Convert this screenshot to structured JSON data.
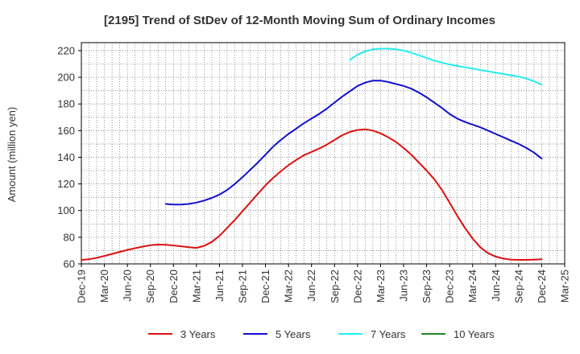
{
  "chart_data": {
    "type": "line",
    "title": "[2195]  Trend of StDev of 12-Month Moving Sum of Ordinary Incomes",
    "ylabel": "Amount (million yen)",
    "xlabel": "",
    "ylim": [
      60,
      226
    ],
    "yticks": [
      60,
      80,
      100,
      120,
      140,
      160,
      180,
      200,
      220
    ],
    "xticks": [
      "Dec-19",
      "Mar-20",
      "Jun-20",
      "Sep-20",
      "Dec-20",
      "Mar-21",
      "Jun-21",
      "Sep-21",
      "Dec-21",
      "Mar-22",
      "Jun-22",
      "Sep-22",
      "Dec-22",
      "Mar-23",
      "Jun-23",
      "Sep-23",
      "Dec-23",
      "Mar-24",
      "Jun-24",
      "Sep-24",
      "Dec-24",
      "Mar-25"
    ],
    "grid": true,
    "legend_position": "bottom",
    "series": [
      {
        "name": "3 Years",
        "color": "#dd1111",
        "x": [
          "Dec-19",
          "Jan-20",
          "Feb-20",
          "Mar-20",
          "Apr-20",
          "May-20",
          "Jun-20",
          "Jul-20",
          "Aug-20",
          "Sep-20",
          "Oct-20",
          "Nov-20",
          "Dec-20",
          "Jan-21",
          "Feb-21",
          "Mar-21",
          "Apr-21",
          "May-21",
          "Jun-21",
          "Jul-21",
          "Aug-21",
          "Sep-21",
          "Oct-21",
          "Nov-21",
          "Dec-21",
          "Jan-22",
          "Feb-22",
          "Mar-22",
          "Apr-22",
          "May-22",
          "Jun-22",
          "Jul-22",
          "Aug-22",
          "Sep-22",
          "Oct-22",
          "Nov-22",
          "Dec-22",
          "Jan-23",
          "Feb-23",
          "Mar-23",
          "Apr-23",
          "May-23",
          "Jun-23",
          "Jul-23",
          "Aug-23",
          "Sep-23",
          "Oct-23",
          "Nov-23",
          "Dec-23",
          "Jan-24",
          "Feb-24",
          "Mar-24",
          "Apr-24",
          "May-24",
          "Jun-24",
          "Jul-24",
          "Aug-24",
          "Sep-24",
          "Oct-24",
          "Nov-24",
          "Dec-24"
        ],
        "values": [
          63,
          63.5,
          64.5,
          66,
          67.5,
          69,
          70.5,
          71.8,
          73,
          74,
          74.5,
          74.3,
          73.8,
          73.2,
          72.5,
          72,
          73.5,
          76.5,
          81,
          87,
          93,
          99.5,
          106,
          112.5,
          119,
          124.5,
          129.5,
          134,
          138,
          141.5,
          144,
          146.5,
          149.5,
          153,
          156.5,
          159,
          160.5,
          161,
          160,
          158,
          155,
          151.5,
          147,
          142,
          136,
          130,
          123.5,
          115.5,
          106,
          96,
          87,
          79,
          72.5,
          68,
          65.5,
          64,
          63.2,
          63,
          63,
          63.2,
          63.5
        ]
      },
      {
        "name": "5 Years",
        "color": "#1111cc",
        "x": [
          "Nov-20",
          "Dec-20",
          "Jan-21",
          "Feb-21",
          "Mar-21",
          "Apr-21",
          "May-21",
          "Jun-21",
          "Jul-21",
          "Aug-21",
          "Sep-21",
          "Oct-21",
          "Nov-21",
          "Dec-21",
          "Jan-22",
          "Feb-22",
          "Mar-22",
          "Apr-22",
          "May-22",
          "Jun-22",
          "Jul-22",
          "Aug-22",
          "Sep-22",
          "Oct-22",
          "Nov-22",
          "Dec-22",
          "Jan-23",
          "Feb-23",
          "Mar-23",
          "Apr-23",
          "May-23",
          "Jun-23",
          "Jul-23",
          "Aug-23",
          "Sep-23",
          "Oct-23",
          "Nov-23",
          "Dec-23",
          "Jan-24",
          "Feb-24",
          "Mar-24",
          "Apr-24",
          "May-24",
          "Jun-24",
          "Jul-24",
          "Aug-24",
          "Sep-24",
          "Oct-24",
          "Nov-24",
          "Dec-24"
        ],
        "values": [
          105,
          104.5,
          104.5,
          105,
          106,
          107.5,
          109.5,
          112,
          115.5,
          120,
          125,
          130.5,
          136,
          142,
          148,
          153,
          157.5,
          161.5,
          165.5,
          169,
          172.5,
          176.5,
          181,
          185.5,
          189.5,
          193.5,
          196,
          197.5,
          197.5,
          196.5,
          195,
          193.5,
          191.5,
          188.5,
          185,
          181,
          177,
          172.5,
          169,
          166.5,
          164.5,
          162.5,
          160,
          157.5,
          155,
          152.5,
          150,
          147,
          143.5,
          139
        ]
      },
      {
        "name": "7 Years",
        "color": "#22eeee",
        "x": [
          "Nov-22",
          "Dec-22",
          "Jan-23",
          "Feb-23",
          "Mar-23",
          "Apr-23",
          "May-23",
          "Jun-23",
          "Jul-23",
          "Aug-23",
          "Sep-23",
          "Oct-23",
          "Nov-23",
          "Dec-23",
          "Jan-24",
          "Feb-24",
          "Mar-24",
          "Apr-24",
          "May-24",
          "Jun-24",
          "Jul-24",
          "Aug-24",
          "Sep-24",
          "Oct-24",
          "Nov-24",
          "Dec-24"
        ],
        "values": [
          213,
          217,
          219.5,
          221,
          221.5,
          221.5,
          221,
          220,
          218.5,
          216.5,
          214.5,
          212.5,
          211,
          209.5,
          208.5,
          207.5,
          206.5,
          205.5,
          204.5,
          203.5,
          202.5,
          201.5,
          200.5,
          199,
          197,
          194.5
        ]
      },
      {
        "name": "10 Years",
        "color": "#228822",
        "x": [],
        "values": []
      }
    ]
  }
}
